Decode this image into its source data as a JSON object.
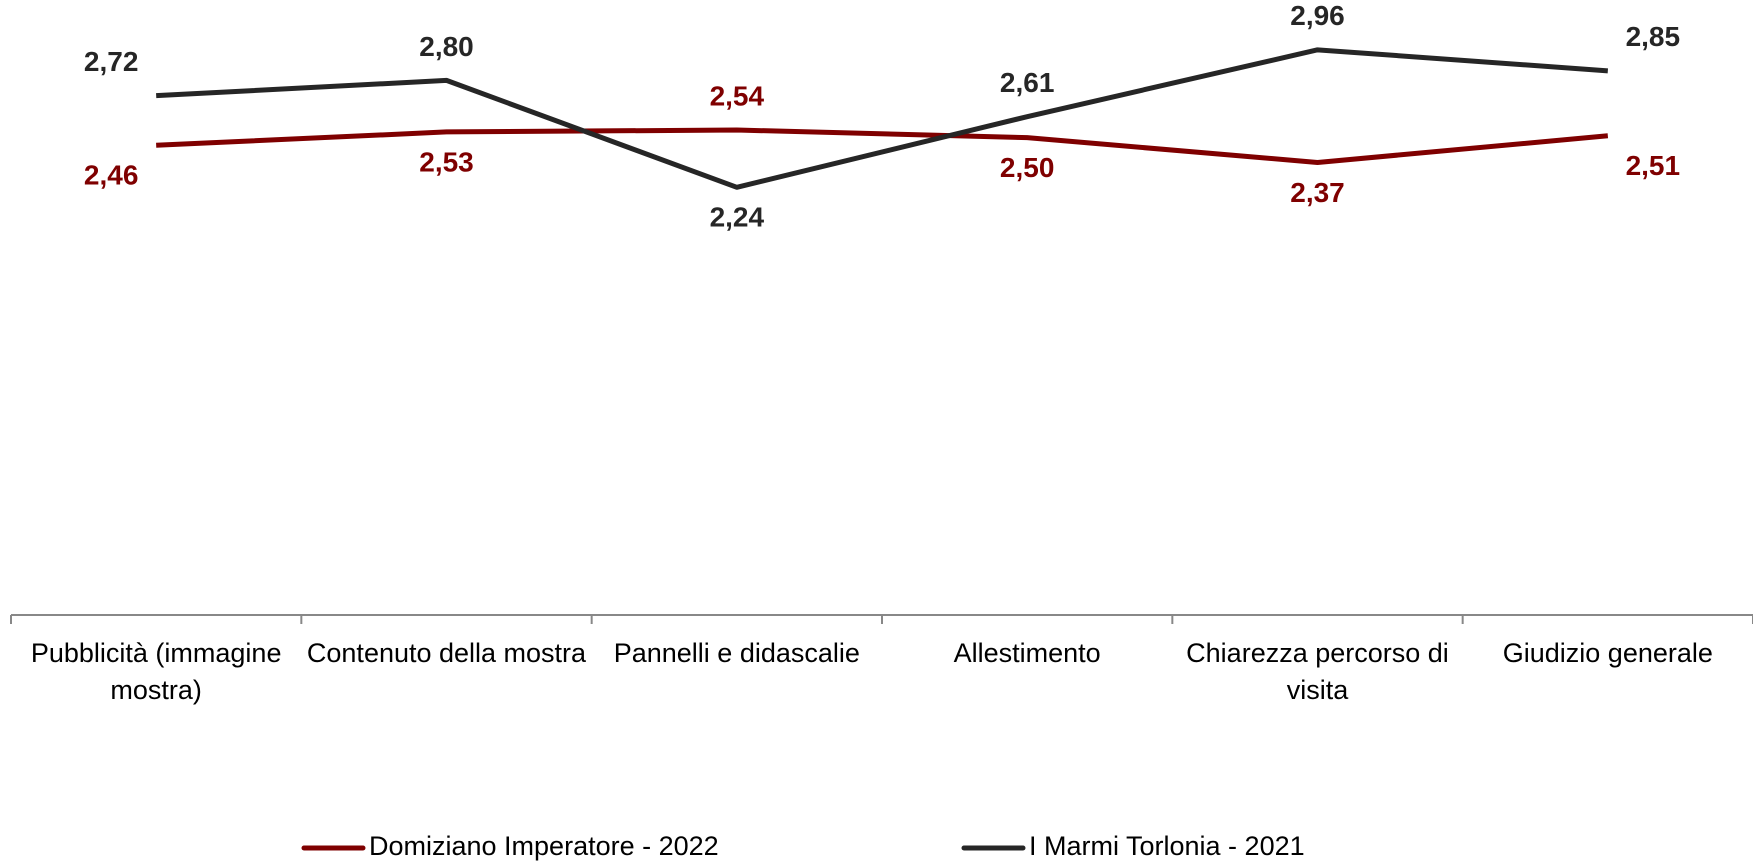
{
  "chart_data": {
    "type": "line",
    "categories": [
      "Pubblicità (immagine mostra)",
      "Contenuto della mostra",
      "Pannelli e didascalie",
      "Allestimento",
      "Chiarezza percorso di visita",
      "Giudizio generale"
    ],
    "series": [
      {
        "name": "Domiziano Imperatore - 2022",
        "color": "#7f0000",
        "values": [
          2.46,
          2.53,
          2.54,
          2.5,
          2.37,
          2.51
        ],
        "value_labels": [
          "2,46",
          "2,53",
          "2,54",
          "2,50",
          "2,37",
          "2,51"
        ]
      },
      {
        "name": "I Marmi Torlonia - 2021",
        "color": "#262626",
        "values": [
          2.72,
          2.8,
          2.24,
          2.61,
          2.96,
          2.85
        ],
        "value_labels": [
          "2,72",
          "2,80",
          "2,24",
          "2,61",
          "2,96",
          "2,85"
        ]
      }
    ],
    "ylim": [
      0,
      3.2
    ],
    "legend": "bottom"
  }
}
